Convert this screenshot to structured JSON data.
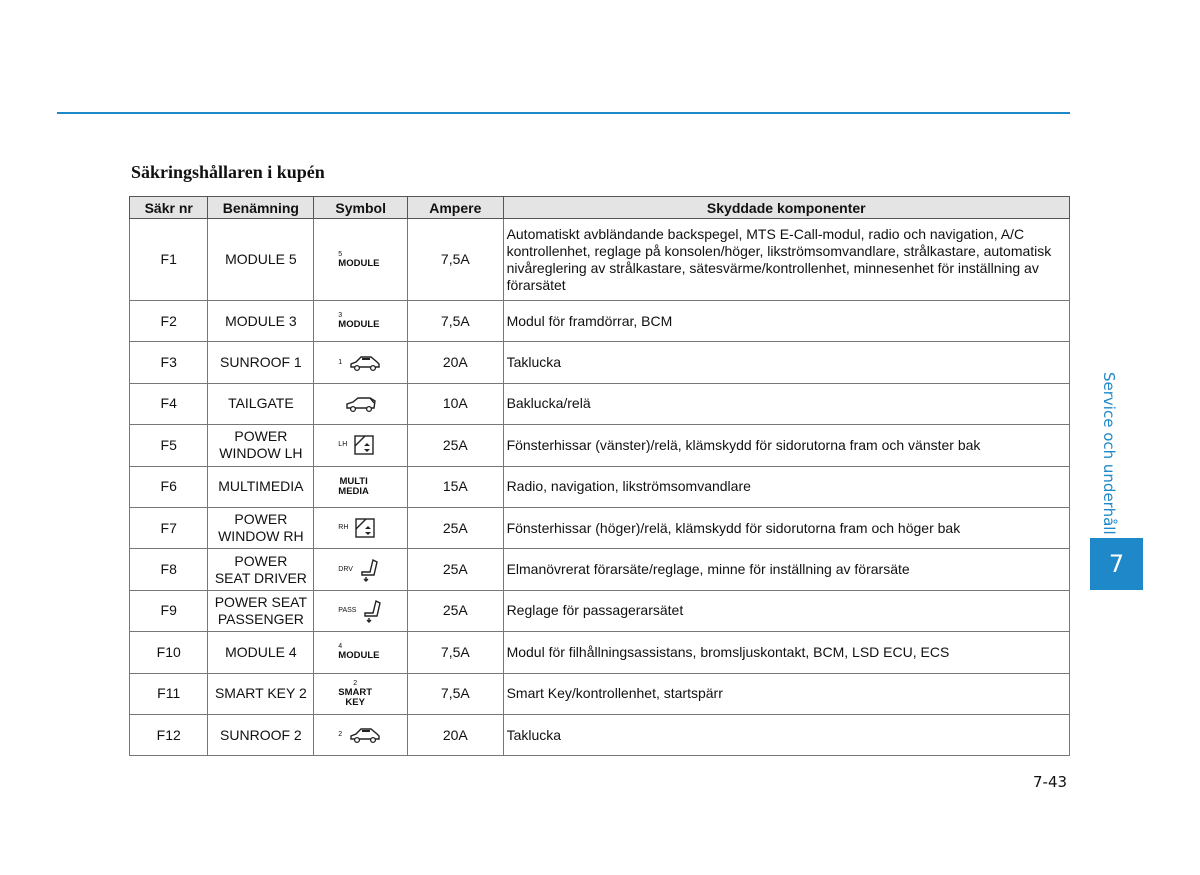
{
  "header": {
    "title": "Säkringshållaren i kupén",
    "side_label": "Service och underhåll",
    "chapter": "7"
  },
  "table": {
    "columns": [
      "Säkr nr",
      "Benämning",
      "Symbol",
      "Ampere",
      "Skyddade komponenter"
    ],
    "rows": [
      {
        "no": "F1",
        "name": [
          "MODULE 5"
        ],
        "symbol": {
          "sup": "5",
          "lines": [
            "MODULE"
          ]
        },
        "ampere": "7,5A",
        "components": "Automatiskt avbländande backspegel, MTS E-Call-modul, radio och navigation, A/C kontrollenhet, reglage på konsolen/höger, likströmsomvandlare, strålkastare, automatisk nivåreglering av strålkastare, sätesvärme/kontrollenhet, minnesenhet för inställning av förarsätet"
      },
      {
        "no": "F2",
        "name": [
          "MODULE 3"
        ],
        "symbol": {
          "sup": "3",
          "lines": [
            "MODULE"
          ]
        },
        "ampere": "7,5A",
        "components": "Modul för framdörrar, BCM"
      },
      {
        "no": "F3",
        "name": [
          "SUNROOF 1"
        ],
        "symbol": {
          "sup": "1"
        },
        "ampere": "20A",
        "components": "Taklucka"
      },
      {
        "no": "F4",
        "name": [
          "TAILGATE"
        ],
        "ampere": "10A",
        "components": "Baklucka/relä"
      },
      {
        "no": "F5",
        "name": [
          "POWER",
          "WINDOW LH"
        ],
        "symbol": {
          "sup": "LH"
        },
        "ampere": "25A",
        "components": "Fönsterhissar (vänster)/relä, klämskydd för sidorutorna fram och vänster bak"
      },
      {
        "no": "F6",
        "name": [
          "MULTIMEDIA"
        ],
        "symbol": {
          "lines": [
            "MULTI",
            "MEDIA"
          ]
        },
        "ampere": "15A",
        "components": "Radio, navigation, likströmsomvandlare"
      },
      {
        "no": "F7",
        "name": [
          "POWER",
          "WINDOW RH"
        ],
        "symbol": {
          "sup": "RH"
        },
        "ampere": "25A",
        "components": "Fönsterhissar (höger)/relä, klämskydd för sidorutorna fram och höger bak"
      },
      {
        "no": "F8",
        "name": [
          "POWER",
          "SEAT DRIVER"
        ],
        "symbol": {
          "sup": "DRV"
        },
        "ampere": "25A",
        "components": "Elmanövrerat förarsäte/reglage, minne för inställning av förarsäte"
      },
      {
        "no": "F9",
        "name": [
          "POWER SEAT",
          "PASSENGER"
        ],
        "symbol": {
          "sup": "PASS"
        },
        "ampere": "25A",
        "components": "Reglage för passagerarsätet"
      },
      {
        "no": "F10",
        "name": [
          "MODULE 4"
        ],
        "symbol": {
          "sup": "4",
          "lines": [
            "MODULE"
          ]
        },
        "ampere": "7,5A",
        "components": "Modul för filhållningsassistans, bromsljuskontakt, BCM, LSD ECU, ECS"
      },
      {
        "no": "F11",
        "name": [
          "SMART KEY 2"
        ],
        "symbol": {
          "sup": "2",
          "lines": [
            "SMART",
            "KEY"
          ]
        },
        "ampere": "7,5A",
        "components": "Smart Key/kontrollenhet, startspärr"
      },
      {
        "no": "F12",
        "name": [
          "SUNROOF 2"
        ],
        "symbol": {
          "sup": "2"
        },
        "ampere": "20A",
        "components": "Taklucka"
      }
    ]
  },
  "footer": {
    "page": "7-43"
  }
}
